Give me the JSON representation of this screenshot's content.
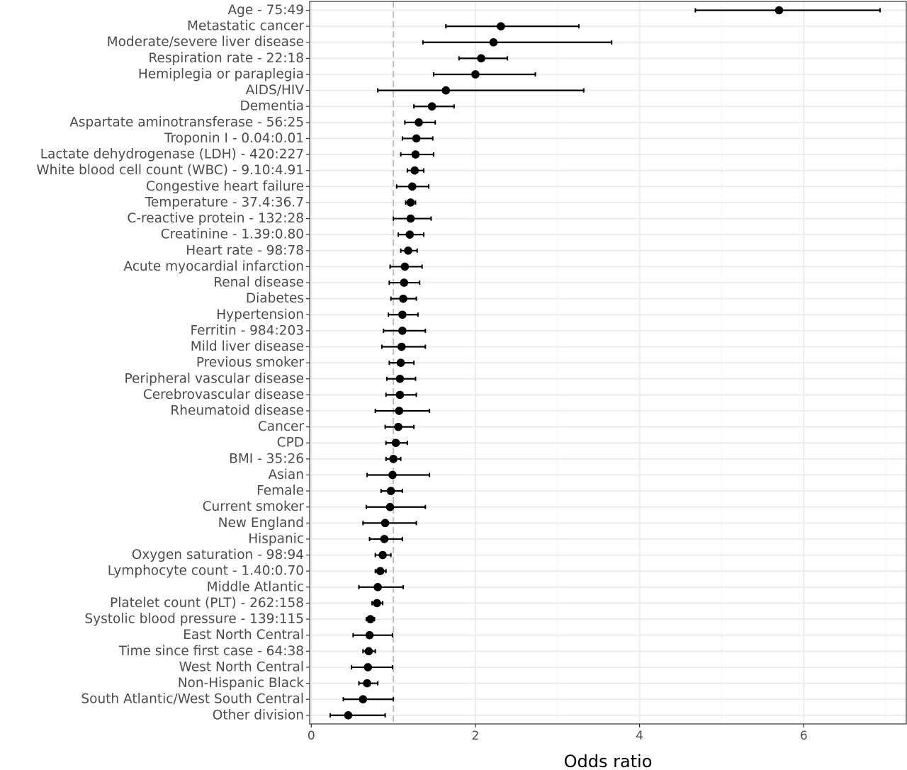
{
  "chart_data": {
    "type": "scatter",
    "subtype": "forest-plot",
    "title": "",
    "xlabel": "Odds ratio",
    "ylabel": "",
    "xlim": [
      -0.02,
      7.25
    ],
    "x_ticks": [
      "0",
      "2",
      "4",
      "6"
    ],
    "x_tick_values": [
      0,
      2,
      4,
      6
    ],
    "reference_line": 1,
    "grid": true,
    "legend": "none",
    "colors": {
      "point": "#000000",
      "interval": "#000000",
      "grid_major": "#ebebeb",
      "grid_minor": "#f5f5f5",
      "reference": "#bdbdbd",
      "border": "#333333",
      "label": "#4d4d4d"
    },
    "rows": [
      {
        "label": "Age - 75:49",
        "or": 5.7,
        "lo": 4.68,
        "hi": 6.93
      },
      {
        "label": "Metastatic cancer",
        "or": 2.31,
        "lo": 1.64,
        "hi": 3.26
      },
      {
        "label": "Moderate/severe liver disease",
        "or": 2.22,
        "lo": 1.36,
        "hi": 3.66
      },
      {
        "label": "Respiration rate - 22:18",
        "or": 2.07,
        "lo": 1.8,
        "hi": 2.39
      },
      {
        "label": "Hemiplegia or paraplegia",
        "or": 2.0,
        "lo": 1.49,
        "hi": 2.73
      },
      {
        "label": "AIDS/HIV",
        "or": 1.64,
        "lo": 0.81,
        "hi": 3.32
      },
      {
        "label": "Dementia",
        "or": 1.47,
        "lo": 1.25,
        "hi": 1.74
      },
      {
        "label": "Aspartate aminotransferase - 56:25",
        "or": 1.31,
        "lo": 1.14,
        "hi": 1.51
      },
      {
        "label": "Troponin I - 0.04:0.01",
        "or": 1.28,
        "lo": 1.11,
        "hi": 1.48
      },
      {
        "label": "Lactate dehydrogenase (LDH) - 420:227",
        "or": 1.27,
        "lo": 1.09,
        "hi": 1.49
      },
      {
        "label": "White blood cell count (WBC) - 9.10:4.91",
        "or": 1.26,
        "lo": 1.17,
        "hi": 1.37
      },
      {
        "label": "Congestive heart failure",
        "or": 1.23,
        "lo": 1.04,
        "hi": 1.43
      },
      {
        "label": "Temperature - 37.4:36.7",
        "or": 1.21,
        "lo": 1.15,
        "hi": 1.27
      },
      {
        "label": "C-reactive protein - 132:28",
        "or": 1.21,
        "lo": 1.0,
        "hi": 1.46
      },
      {
        "label": "Creatinine - 1.39:0.80",
        "or": 1.2,
        "lo": 1.06,
        "hi": 1.37
      },
      {
        "label": "Heart rate - 98:78",
        "or": 1.18,
        "lo": 1.09,
        "hi": 1.29
      },
      {
        "label": "Acute myocardial infarction",
        "or": 1.14,
        "lo": 0.96,
        "hi": 1.35
      },
      {
        "label": "Renal disease",
        "or": 1.13,
        "lo": 0.95,
        "hi": 1.32
      },
      {
        "label": "Diabetes",
        "or": 1.12,
        "lo": 0.97,
        "hi": 1.28
      },
      {
        "label": "Hypertension",
        "or": 1.11,
        "lo": 0.94,
        "hi": 1.3
      },
      {
        "label": "Ferritin - 984:203",
        "or": 1.11,
        "lo": 0.88,
        "hi": 1.39
      },
      {
        "label": "Mild liver disease",
        "or": 1.1,
        "lo": 0.86,
        "hi": 1.39
      },
      {
        "label": "Previous smoker",
        "or": 1.09,
        "lo": 0.95,
        "hi": 1.25
      },
      {
        "label": "Peripheral vascular disease",
        "or": 1.08,
        "lo": 0.92,
        "hi": 1.27
      },
      {
        "label": "Cerebrovascular disease",
        "or": 1.08,
        "lo": 0.91,
        "hi": 1.28
      },
      {
        "label": "Rheumatoid disease",
        "or": 1.07,
        "lo": 0.78,
        "hi": 1.44
      },
      {
        "label": "Cancer",
        "or": 1.06,
        "lo": 0.9,
        "hi": 1.25
      },
      {
        "label": "CPD",
        "or": 1.03,
        "lo": 0.91,
        "hi": 1.17
      },
      {
        "label": "BMI - 35:26",
        "or": 1.0,
        "lo": 0.91,
        "hi": 1.09
      },
      {
        "label": "Asian",
        "or": 0.99,
        "lo": 0.68,
        "hi": 1.44
      },
      {
        "label": "Female",
        "or": 0.97,
        "lo": 0.85,
        "hi": 1.11
      },
      {
        "label": "Current smoker",
        "or": 0.96,
        "lo": 0.67,
        "hi": 1.39
      },
      {
        "label": "New England",
        "or": 0.9,
        "lo": 0.63,
        "hi": 1.28
      },
      {
        "label": "Hispanic",
        "or": 0.89,
        "lo": 0.71,
        "hi": 1.11
      },
      {
        "label": "Oxygen saturation - 98:94",
        "or": 0.87,
        "lo": 0.78,
        "hi": 0.97
      },
      {
        "label": "Lymphocyte count - 1.40:0.70",
        "or": 0.84,
        "lo": 0.78,
        "hi": 0.91
      },
      {
        "label": "Middle Atlantic",
        "or": 0.81,
        "lo": 0.58,
        "hi": 1.12
      },
      {
        "label": "Platelet count (PLT) - 262:158",
        "or": 0.8,
        "lo": 0.74,
        "hi": 0.87
      },
      {
        "label": "Systolic blood pressure - 139:115",
        "or": 0.72,
        "lo": 0.67,
        "hi": 0.77
      },
      {
        "label": "East North Central",
        "or": 0.71,
        "lo": 0.51,
        "hi": 0.99
      },
      {
        "label": "Time since first case - 64:38",
        "or": 0.7,
        "lo": 0.63,
        "hi": 0.78
      },
      {
        "label": "West North Central",
        "or": 0.69,
        "lo": 0.49,
        "hi": 0.99
      },
      {
        "label": "Non-Hispanic Black",
        "or": 0.68,
        "lo": 0.58,
        "hi": 0.81
      },
      {
        "label": "South Atlantic/West South Central",
        "or": 0.63,
        "lo": 0.39,
        "hi": 1.0
      },
      {
        "label": "Other division",
        "or": 0.45,
        "lo": 0.23,
        "hi": 0.9
      }
    ]
  }
}
